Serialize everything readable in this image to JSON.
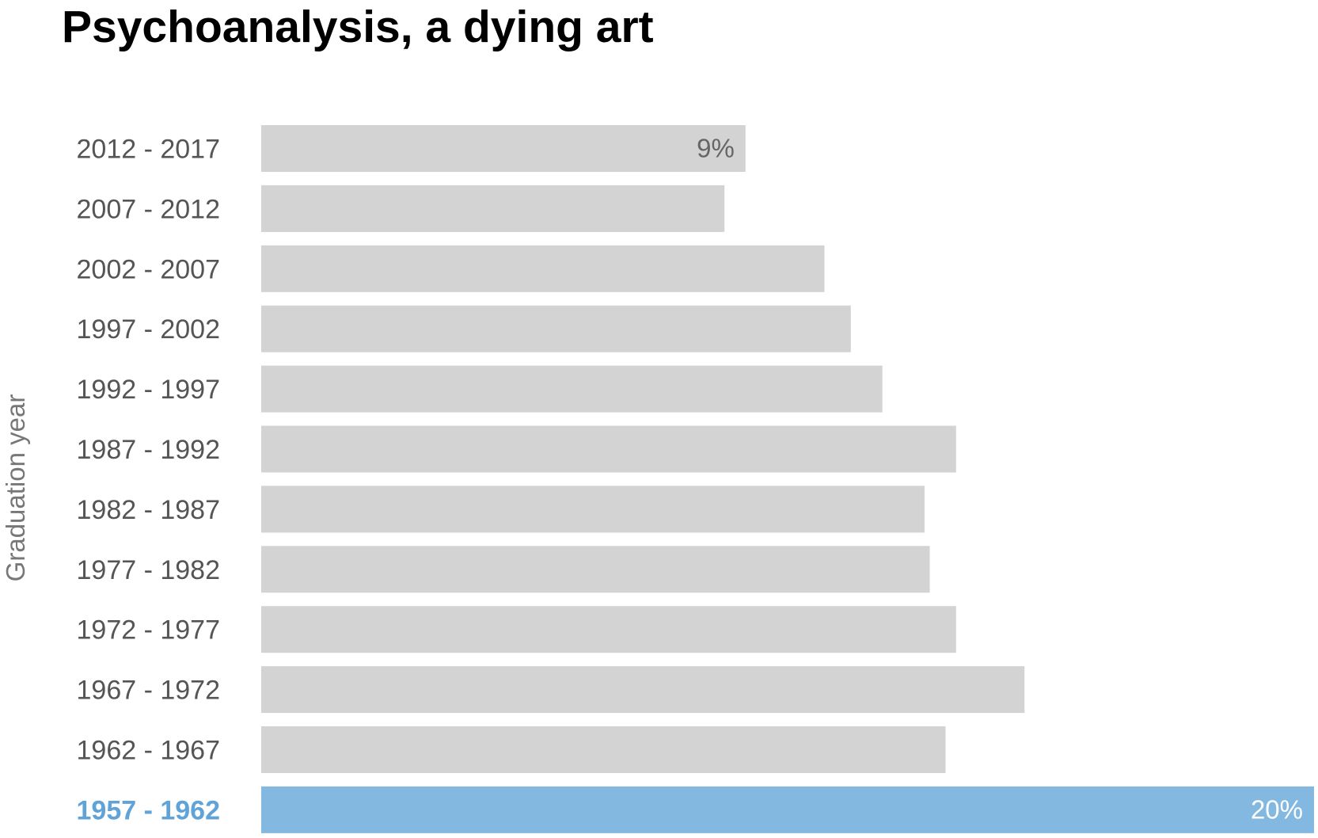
{
  "chart_data": {
    "type": "bar",
    "orientation": "horizontal",
    "title": "Psychoanalysis, a dying art",
    "ylabel": "Graduation year",
    "xlabel": "",
    "categories": [
      "2012 - 2017",
      "2007 - 2012",
      "2002 - 2007",
      "1997 - 2002",
      "1992 - 1997",
      "1987 - 1992",
      "1982 - 1987",
      "1977 - 1982",
      "1972 - 1977",
      "1967 - 1972",
      "1962 - 1967",
      "1957 - 1962"
    ],
    "values": [
      9.2,
      8.8,
      10.7,
      11.2,
      11.8,
      13.2,
      12.6,
      12.7,
      13.2,
      14.5,
      13.0,
      20.0
    ],
    "data_labels": [
      "9%",
      "",
      "",
      "",
      "",
      "",
      "",
      "",
      "",
      "",
      "",
      "20%"
    ],
    "highlight_category": "1957 - 1962",
    "xlim": [
      0,
      20
    ],
    "grid": false,
    "legend": "none",
    "colors": {
      "bar": "#d3d3d3",
      "highlight_bar": "#83b8e1",
      "highlight_label": "#5fa3d8",
      "tick_label": "#555555",
      "bar_label": "#666666",
      "highlight_bar_label": "#ffffff",
      "title": "#000000",
      "axis_title": "#777777"
    }
  }
}
